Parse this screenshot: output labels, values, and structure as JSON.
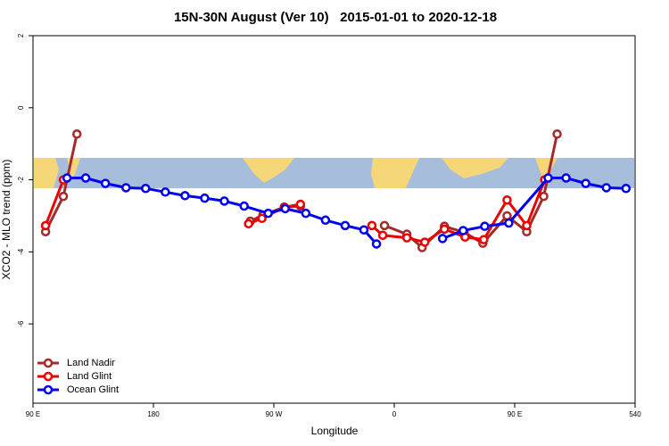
{
  "chart_data": {
    "type": "line",
    "title": "15N-30N August (Ver 10)   2015-01-01 to 2020-12-18",
    "x_label": "Longitude",
    "y_label": "XCO2 - MLO trend (ppm)",
    "xlim": [
      90,
      540
    ],
    "ylim": [
      -8.2,
      2
    ],
    "xticks": [
      {
        "value": 90,
        "label": "90 E"
      },
      180,
      {
        "value": 270,
        "label": "90 W"
      },
      {
        "value": 360,
        "label": "0"
      },
      {
        "value": 450,
        "label": "90 E"
      },
      540
    ],
    "yticks": [
      -6,
      -4,
      -2,
      0,
      2
    ],
    "legend": "bottom-left",
    "series": [
      {
        "name": "Land Nadir",
        "color": "#a52a2a",
        "x": [
          99.4,
          112.7,
          122.8,
          null,
          252.4,
          261.8,
          277.8,
          289.9,
          null,
          352.7,
          369.4,
          380.8,
          397.5,
          412.2,
          426.2,
          444.3,
          459.0,
          471.7,
          481.7
        ],
        "values": [
          -3.44,
          -2.46,
          -0.73,
          null,
          -3.15,
          -2.98,
          -2.76,
          -2.73,
          null,
          -3.27,
          -3.51,
          -3.88,
          -3.29,
          -3.46,
          -3.76,
          -3.0,
          -3.44,
          -2.46,
          -0.73
        ]
      },
      {
        "name": "Land Glint",
        "color": "#ee0000",
        "x": [
          99.4,
          112.7,
          null,
          251.1,
          261.1,
          277.8,
          289.9,
          null,
          343.3,
          351.4,
          369.4,
          382.8,
          397.5,
          412.9,
          426.9,
          444.3,
          459.0,
          472.4
        ],
        "values": [
          -3.27,
          -2.0,
          null,
          -3.22,
          -3.07,
          -2.76,
          -2.68,
          null,
          -3.27,
          -3.54,
          -3.61,
          -3.73,
          -3.37,
          -3.59,
          -3.66,
          -2.56,
          -3.27,
          -2.0
        ]
      },
      {
        "name": "Ocean Glint",
        "color": "#0000ee",
        "x": [
          115.4,
          129.4,
          144.1,
          159.5,
          174.2,
          188.9,
          203.6,
          218.3,
          233.0,
          247.8,
          265.8,
          278.5,
          293.9,
          308.6,
          323.3,
          337.3,
          346.7,
          null,
          396.1,
          411.5,
          427.6,
          445.6,
          475.0,
          488.4,
          503.1,
          518.5,
          533.2
        ],
        "values": [
          -1.95,
          -1.95,
          -2.1,
          -2.22,
          -2.24,
          -2.34,
          -2.44,
          -2.51,
          -2.59,
          -2.73,
          -2.93,
          -2.8,
          -2.93,
          -3.12,
          -3.27,
          -3.39,
          -3.78,
          null,
          -3.63,
          -3.41,
          -3.29,
          -3.2,
          -1.95,
          -1.95,
          -2.1,
          -2.22,
          -2.24
        ]
      }
    ]
  }
}
